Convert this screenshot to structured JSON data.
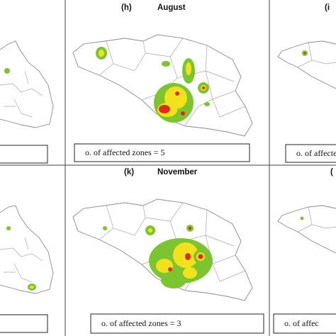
{
  "panels": [
    {
      "label": "(h)",
      "month": "August",
      "caption": "o. of affected zones = 5"
    },
    {
      "label": "(k)",
      "month": "November",
      "caption": "o. of affected zones = 3"
    }
  ],
  "right_panels": [
    {
      "label": "(i",
      "caption": "o. of affecte"
    },
    {
      "label": "(",
      "caption": "o. of affec"
    }
  ]
}
